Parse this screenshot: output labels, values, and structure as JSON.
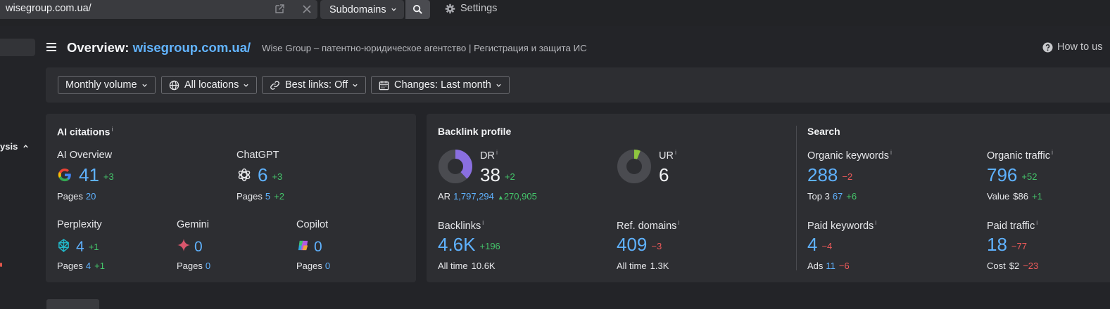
{
  "topbar": {
    "url": "wisegroup.com.ua/",
    "mode_label": "Subdomains",
    "settings_label": "Settings"
  },
  "sidebar": {
    "section_label": "ysis"
  },
  "header": {
    "title_prefix": "Overview: ",
    "title_site": "wisegroup.com.ua/",
    "subtitle": "Wise Group – патентно-юридическое агентство | Регистрация и защита ИС",
    "howto_label": "How to us"
  },
  "filters": [
    {
      "label": "Monthly volume",
      "icon": ""
    },
    {
      "label": "All locations",
      "icon": "globe-icon"
    },
    {
      "label": "Best links: Off",
      "icon": "link-icon"
    },
    {
      "label": "Changes: Last month",
      "icon": "calendar-icon"
    }
  ],
  "ai": {
    "title": "AI citations",
    "overview": {
      "label": "AI Overview",
      "value": "41",
      "delta": "+3",
      "pages_label": "Pages",
      "pages": "20",
      "pages_delta": ""
    },
    "chatgpt": {
      "label": "ChatGPT",
      "value": "6",
      "delta": "+3",
      "pages_label": "Pages",
      "pages": "5",
      "pages_delta": "+2"
    },
    "perplexity": {
      "label": "Perplexity",
      "value": "4",
      "delta": "+1",
      "pages_label": "Pages",
      "pages": "4",
      "pages_delta": "+1"
    },
    "gemini": {
      "label": "Gemini",
      "value": "0",
      "pages_label": "Pages",
      "pages": "0"
    },
    "copilot": {
      "label": "Copilot",
      "value": "0",
      "pages_label": "Pages",
      "pages": "0"
    }
  },
  "backlink": {
    "title": "Backlink profile",
    "dr": {
      "label": "DR",
      "value": "38",
      "delta": "+2",
      "fill_fraction": 0.38
    },
    "ar": {
      "label": "AR",
      "value": "1,797,294",
      "delta": "270,905"
    },
    "ur": {
      "label": "UR",
      "value": "6",
      "fill_fraction": 0.06
    },
    "backlinks": {
      "label": "Backlinks",
      "value": "4.6K",
      "delta": "+196",
      "alltime_label": "All time",
      "alltime": "10.6K"
    },
    "refdomains": {
      "label": "Ref. domains",
      "value": "409",
      "delta": "−3",
      "alltime_label": "All time",
      "alltime": "1.3K"
    }
  },
  "search": {
    "title": "Search",
    "organic_keywords": {
      "label": "Organic keywords",
      "value": "288",
      "delta": "−2",
      "sub_label": "Top 3",
      "sub_value": "67",
      "sub_delta": "+6"
    },
    "organic_traffic": {
      "label": "Organic traffic",
      "value": "796",
      "delta": "+52",
      "sub_label": "Value",
      "sub_value": "$86",
      "sub_delta": "+1"
    },
    "paid_keywords": {
      "label": "Paid keywords",
      "value": "4",
      "delta": "−4",
      "sub_label": "Ads",
      "sub_value": "11",
      "sub_delta": "−6"
    },
    "paid_traffic": {
      "label": "Paid traffic",
      "value": "18",
      "delta": "−77",
      "sub_label": "Cost",
      "sub_value": "$2",
      "sub_delta": "−23"
    }
  },
  "colors": {
    "accent_blue": "#5fb2ff",
    "positive": "#44c46a",
    "negative": "#ef5a5a",
    "dr_fill": "#8a6fe0",
    "ur_fill": "#8ec63f"
  }
}
